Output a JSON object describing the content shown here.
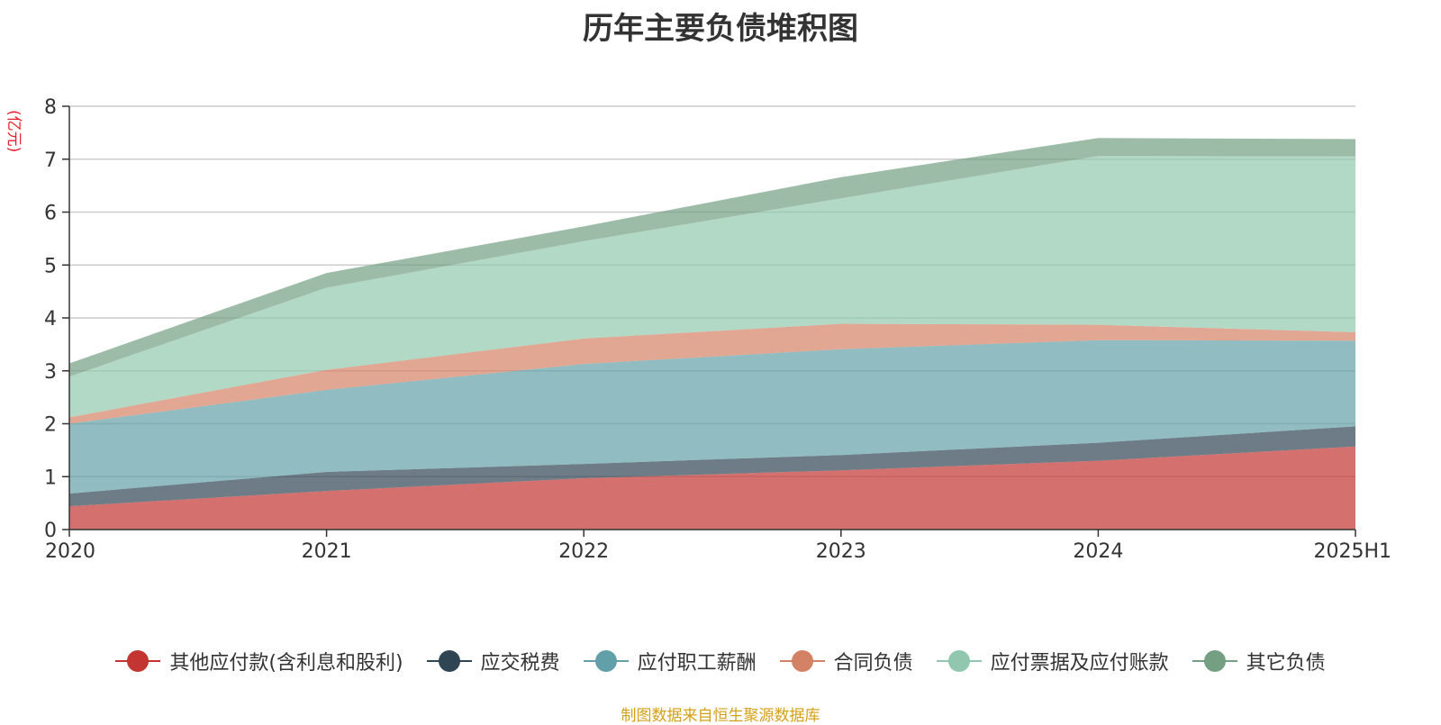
{
  "chart_data": {
    "type": "area",
    "title": "历年主要负债堆积图",
    "unit": "(亿元)",
    "stacked": true,
    "categories": [
      "2020",
      "2021",
      "2022",
      "2023",
      "2024",
      "2025H1"
    ],
    "ylim": [
      0,
      8
    ],
    "yticks": [
      0,
      1,
      2,
      3,
      4,
      5,
      6,
      7,
      8
    ],
    "grid": true,
    "legend_position": "bottom",
    "series": [
      {
        "name": "其他应付款(含利息和股利)",
        "color": "#c23531",
        "values": [
          0.44,
          0.73,
          0.97,
          1.12,
          1.3,
          1.57
        ]
      },
      {
        "name": "应交税费",
        "color": "#2f4554",
        "values": [
          0.24,
          0.36,
          0.27,
          0.29,
          0.34,
          0.38
        ]
      },
      {
        "name": "应付职工薪酬",
        "color": "#61a0a8",
        "values": [
          1.32,
          1.55,
          1.89,
          2.0,
          1.94,
          1.62
        ]
      },
      {
        "name": "合同负债",
        "color": "#d48265",
        "values": [
          0.12,
          0.38,
          0.48,
          0.48,
          0.29,
          0.16
        ]
      },
      {
        "name": "应付票据及应付账款",
        "color": "#91c7ae",
        "values": [
          0.77,
          1.55,
          1.84,
          2.37,
          3.19,
          3.32
        ]
      },
      {
        "name": "其它负债",
        "color": "#749f83",
        "values": [
          0.25,
          0.28,
          0.28,
          0.4,
          0.34,
          0.33
        ]
      }
    ]
  },
  "footer": {
    "source": "制图数据来自恒生聚源数据库"
  }
}
